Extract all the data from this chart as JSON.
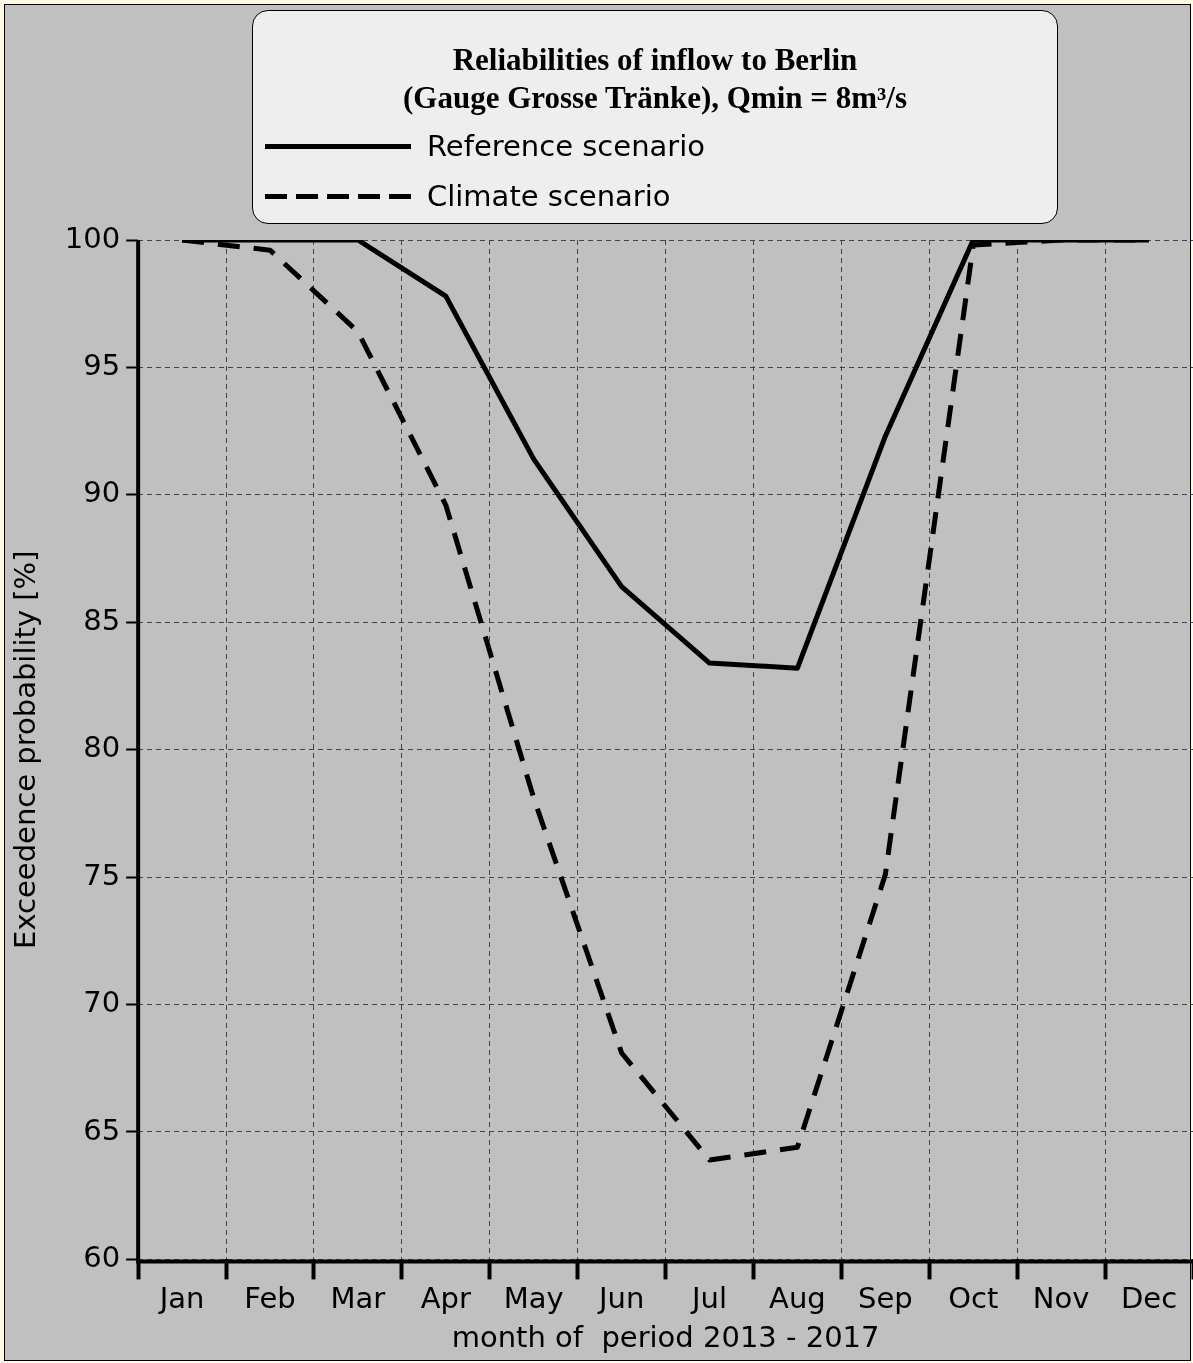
{
  "chart_data": {
    "type": "line",
    "title": "Reliabilities of  inflow to Berlin",
    "subtitle": "(Gauge Grosse Tränke), Qmin = 8m³/s",
    "xlabel": "month of  period 2013 - 2017",
    "ylabel": "Exceedence probability [%]",
    "categories": [
      "Jan",
      "Feb",
      "Mar",
      "Apr",
      "May",
      "Jun",
      "Jul",
      "Aug",
      "Sep",
      "Oct",
      "Nov",
      "Dec"
    ],
    "series": [
      {
        "name": "Reference scenario",
        "color": "#000000",
        "line_style": "solid",
        "values": [
          100,
          100,
          100,
          97.8,
          91.4,
          86.4,
          83.4,
          83.2,
          92.3,
          100,
          100,
          100
        ]
      },
      {
        "name": "Climate scenario",
        "color": "#000000",
        "line_style": "dashed",
        "values": [
          100,
          99.6,
          96.4,
          89.6,
          78.1,
          68.1,
          63.9,
          64.4,
          75.1,
          99.8,
          100,
          100
        ]
      }
    ],
    "ylim": [
      60,
      100
    ],
    "yticks": [
      60,
      65,
      70,
      75,
      80,
      85,
      90,
      95,
      100
    ],
    "grid": true,
    "legend": "top",
    "marker": "none"
  }
}
